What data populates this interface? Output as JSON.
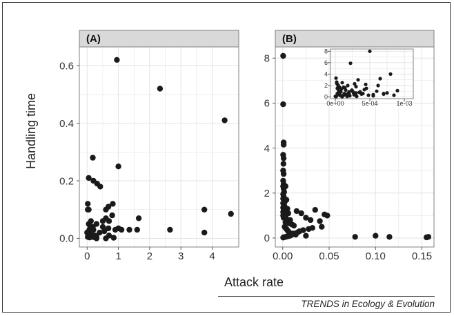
{
  "ylabel": "Handling time",
  "xlabel": "Attack rate",
  "source": "TRENDS in Ecology & Evolution",
  "colors": {
    "panel_bg": "#ffffff",
    "panel_border": "#7f7f7f",
    "strip_bg": "#d9d9d9",
    "grid": "#e3e3e3",
    "point": "#1a1a1a"
  },
  "chart_data": [
    {
      "type": "scatter",
      "panel": "(A)",
      "xlabel": "Attack rate",
      "ylabel": "Handling time",
      "xlim": [
        -0.25,
        4.85
      ],
      "ylim": [
        -0.03,
        0.665
      ],
      "x_ticks": [
        0,
        1,
        2,
        3,
        4
      ],
      "x_tick_labels": [
        "0",
        "1",
        "2",
        "3",
        "4"
      ],
      "y_ticks": [
        0.0,
        0.2,
        0.4,
        0.6
      ],
      "y_tick_labels": [
        "0.0",
        "0.2",
        "0.4",
        "0.6"
      ],
      "grid": true,
      "x": [
        0.95,
        2.33,
        4.4,
        0.18,
        1.0,
        0.05,
        0.2,
        0.32,
        0.42,
        0.02,
        0.05,
        0.02,
        0.82,
        0.68,
        0.6,
        0.8,
        1.65,
        3.75,
        4.6,
        0.5,
        0.6,
        0.7,
        0.3,
        0.05,
        0.1,
        0.15,
        0.2,
        0.07,
        0.9,
        1.1,
        1.0,
        1.35,
        1.6,
        2.65,
        3.75,
        0.0,
        0.05,
        0.1,
        0.15,
        0.2,
        0.25,
        0.4,
        0.55,
        0.7,
        0.15,
        0.3,
        0.02,
        0.08,
        0.25,
        0.18,
        0.5,
        0.68,
        0.85,
        0.12,
        0.08,
        0.3,
        0.6
      ],
      "y": [
        0.62,
        0.52,
        0.41,
        0.28,
        0.25,
        0.21,
        0.2,
        0.19,
        0.18,
        0.12,
        0.1,
        0.1,
        0.12,
        0.11,
        0.1,
        0.08,
        0.07,
        0.1,
        0.085,
        0.06,
        0.07,
        0.06,
        0.05,
        0.05,
        0.04,
        0.04,
        0.03,
        0.03,
        0.03,
        0.03,
        0.035,
        0.03,
        0.03,
        0.03,
        0.02,
        0.02,
        0.02,
        0.015,
        0.01,
        0.01,
        0.01,
        0.02,
        0.025,
        0.01,
        0.005,
        0.005,
        0.005,
        0.003,
        0.003,
        0.04,
        0.04,
        0.035,
        0.002,
        0.06,
        0.005,
        0.0,
        0.0
      ]
    },
    {
      "type": "scatter",
      "panel": "(B)",
      "xlabel": "Attack rate",
      "ylabel": "Handling time",
      "xlim": [
        -0.008,
        0.163
      ],
      "ylim": [
        -0.4,
        8.5
      ],
      "x_ticks": [
        0.0,
        0.05,
        0.1,
        0.15
      ],
      "x_tick_labels": [
        "0.00",
        "0.05",
        "0.10",
        "0.15"
      ],
      "y_ticks": [
        0,
        2,
        4,
        6,
        8
      ],
      "y_tick_labels": [
        "0",
        "2",
        "4",
        "6",
        "8"
      ],
      "grid": true,
      "x": [
        0.0005,
        0.0005,
        0.001,
        0.001,
        0.0005,
        0.001,
        0.0008,
        0.0005,
        0.001,
        0.0005,
        0.001,
        0.0005,
        0.001,
        0.0015,
        0.0005,
        0.001,
        0.0005,
        0.0015,
        0.002,
        0.0005,
        0.001,
        0.0015,
        0.0005,
        0.002,
        0.001,
        0.0005,
        0.002,
        0.001,
        0.0005,
        0.0015,
        0.001,
        0.003,
        0.004,
        0.002,
        0.005,
        0.006,
        0.003,
        0.004,
        0.008,
        0.005,
        0.003,
        0.007,
        0.01,
        0.012,
        0.015,
        0.02,
        0.025,
        0.03,
        0.035,
        0.04,
        0.045,
        0.048,
        0.042,
        0.032,
        0.028,
        0.022,
        0.018,
        0.016,
        0.013,
        0.01,
        0.008,
        0.006,
        0.004,
        0.003,
        0.002,
        0.001,
        0.0005,
        0.002,
        0.003,
        0.004,
        0.005,
        0.006,
        0.007,
        0.011,
        0.014,
        0.025,
        0.078,
        0.1,
        0.115,
        0.155,
        0.157
      ],
      "y": [
        8.1,
        5.95,
        4.25,
        4.15,
        3.7,
        3.55,
        3.3,
        3.0,
        2.85,
        2.55,
        2.4,
        2.3,
        2.2,
        2.05,
        1.95,
        1.85,
        1.75,
        1.7,
        1.6,
        1.55,
        1.5,
        1.45,
        1.35,
        1.3,
        1.25,
        1.15,
        1.1,
        1.05,
        1.0,
        0.95,
        0.9,
        2.3,
        1.7,
        1.4,
        1.3,
        1.1,
        0.95,
        0.85,
        0.8,
        0.75,
        0.7,
        0.65,
        0.6,
        0.55,
        1.2,
        1.1,
        0.9,
        0.8,
        1.25,
        0.75,
        1.05,
        1.0,
        0.5,
        0.45,
        0.4,
        0.35,
        0.3,
        0.25,
        0.2,
        0.15,
        0.1,
        0.08,
        0.06,
        0.05,
        0.04,
        0.03,
        0.02,
        0.5,
        0.45,
        0.4,
        0.35,
        0.3,
        0.25,
        0.2,
        0.15,
        0.1,
        0.05,
        0.1,
        0.05,
        0.03,
        0.05
      ]
    },
    {
      "type": "scatter",
      "panel": "inset",
      "xlim": [
        -7e-05,
        0.00113
      ],
      "ylim": [
        -0.3,
        8.4
      ],
      "x_ticks": [
        0,
        0.0005,
        0.001
      ],
      "x_tick_labels": [
        "0e+00",
        "5e-04",
        "1e-03"
      ],
      "y_ticks": [
        0,
        2,
        4,
        6,
        8
      ],
      "y_tick_labels": [
        "0",
        "2",
        "4",
        "6",
        "8"
      ],
      "grid": true,
      "x": [
        0.0,
        1e-05,
        2e-05,
        3e-05,
        4e-05,
        5e-05,
        6e-05,
        8e-05,
        0.0001,
        0.00012,
        0.00015,
        0.00018,
        0.0002,
        0.00022,
        0.00025,
        0.00028,
        0.0003,
        0.00033,
        0.00035,
        0.0004,
        0.00045,
        0.0005,
        0.00055,
        0.0006,
        0.00065,
        0.0007,
        0.00075,
        0.0008,
        0.00085,
        0.0009,
        1e-05,
        2e-05,
        3e-05,
        5e-05,
        7e-05,
        0.0001,
        0.00013,
        0.00016,
        0.00021,
        0.00026,
        0.00031,
        0.00038,
        0.00042,
        0.00048,
        0.00055,
        0.00062,
        0.0007,
        2e-05,
        4e-05,
        6e-05,
        9e-05,
        0.00014,
        0.00019,
        0.00024,
        0.0003,
        0.00036,
        0.00044,
        0.0001,
        5e-05,
        3e-05,
        8e-05,
        0.00012,
        0.00017,
        0.00027,
        0.0002,
        0.0003
      ],
      "y": [
        0.1,
        3.3,
        2.4,
        1.5,
        2.1,
        0.6,
        1.7,
        0.9,
        2.5,
        0.3,
        1.2,
        2.0,
        0.5,
        5.9,
        1.0,
        2.3,
        0.2,
        3.0,
        0.8,
        0.6,
        1.5,
        8.0,
        0.4,
        1.0,
        3.2,
        0.5,
        0.7,
        4.0,
        0.3,
        1.1,
        0.05,
        0.2,
        0.4,
        1.0,
        0.3,
        0.1,
        0.6,
        0.4,
        0.2,
        0.8,
        0.1,
        0.5,
        1.3,
        0.3,
        0.2,
        2.0,
        0.6,
        2.6,
        1.9,
        0.8,
        1.4,
        1.6,
        0.7,
        1.2,
        1.8,
        0.9,
        2.2,
        0.05,
        1.1,
        0.6,
        0.2,
        1.7,
        0.1,
        0.4,
        0.9,
        0.7
      ]
    }
  ]
}
